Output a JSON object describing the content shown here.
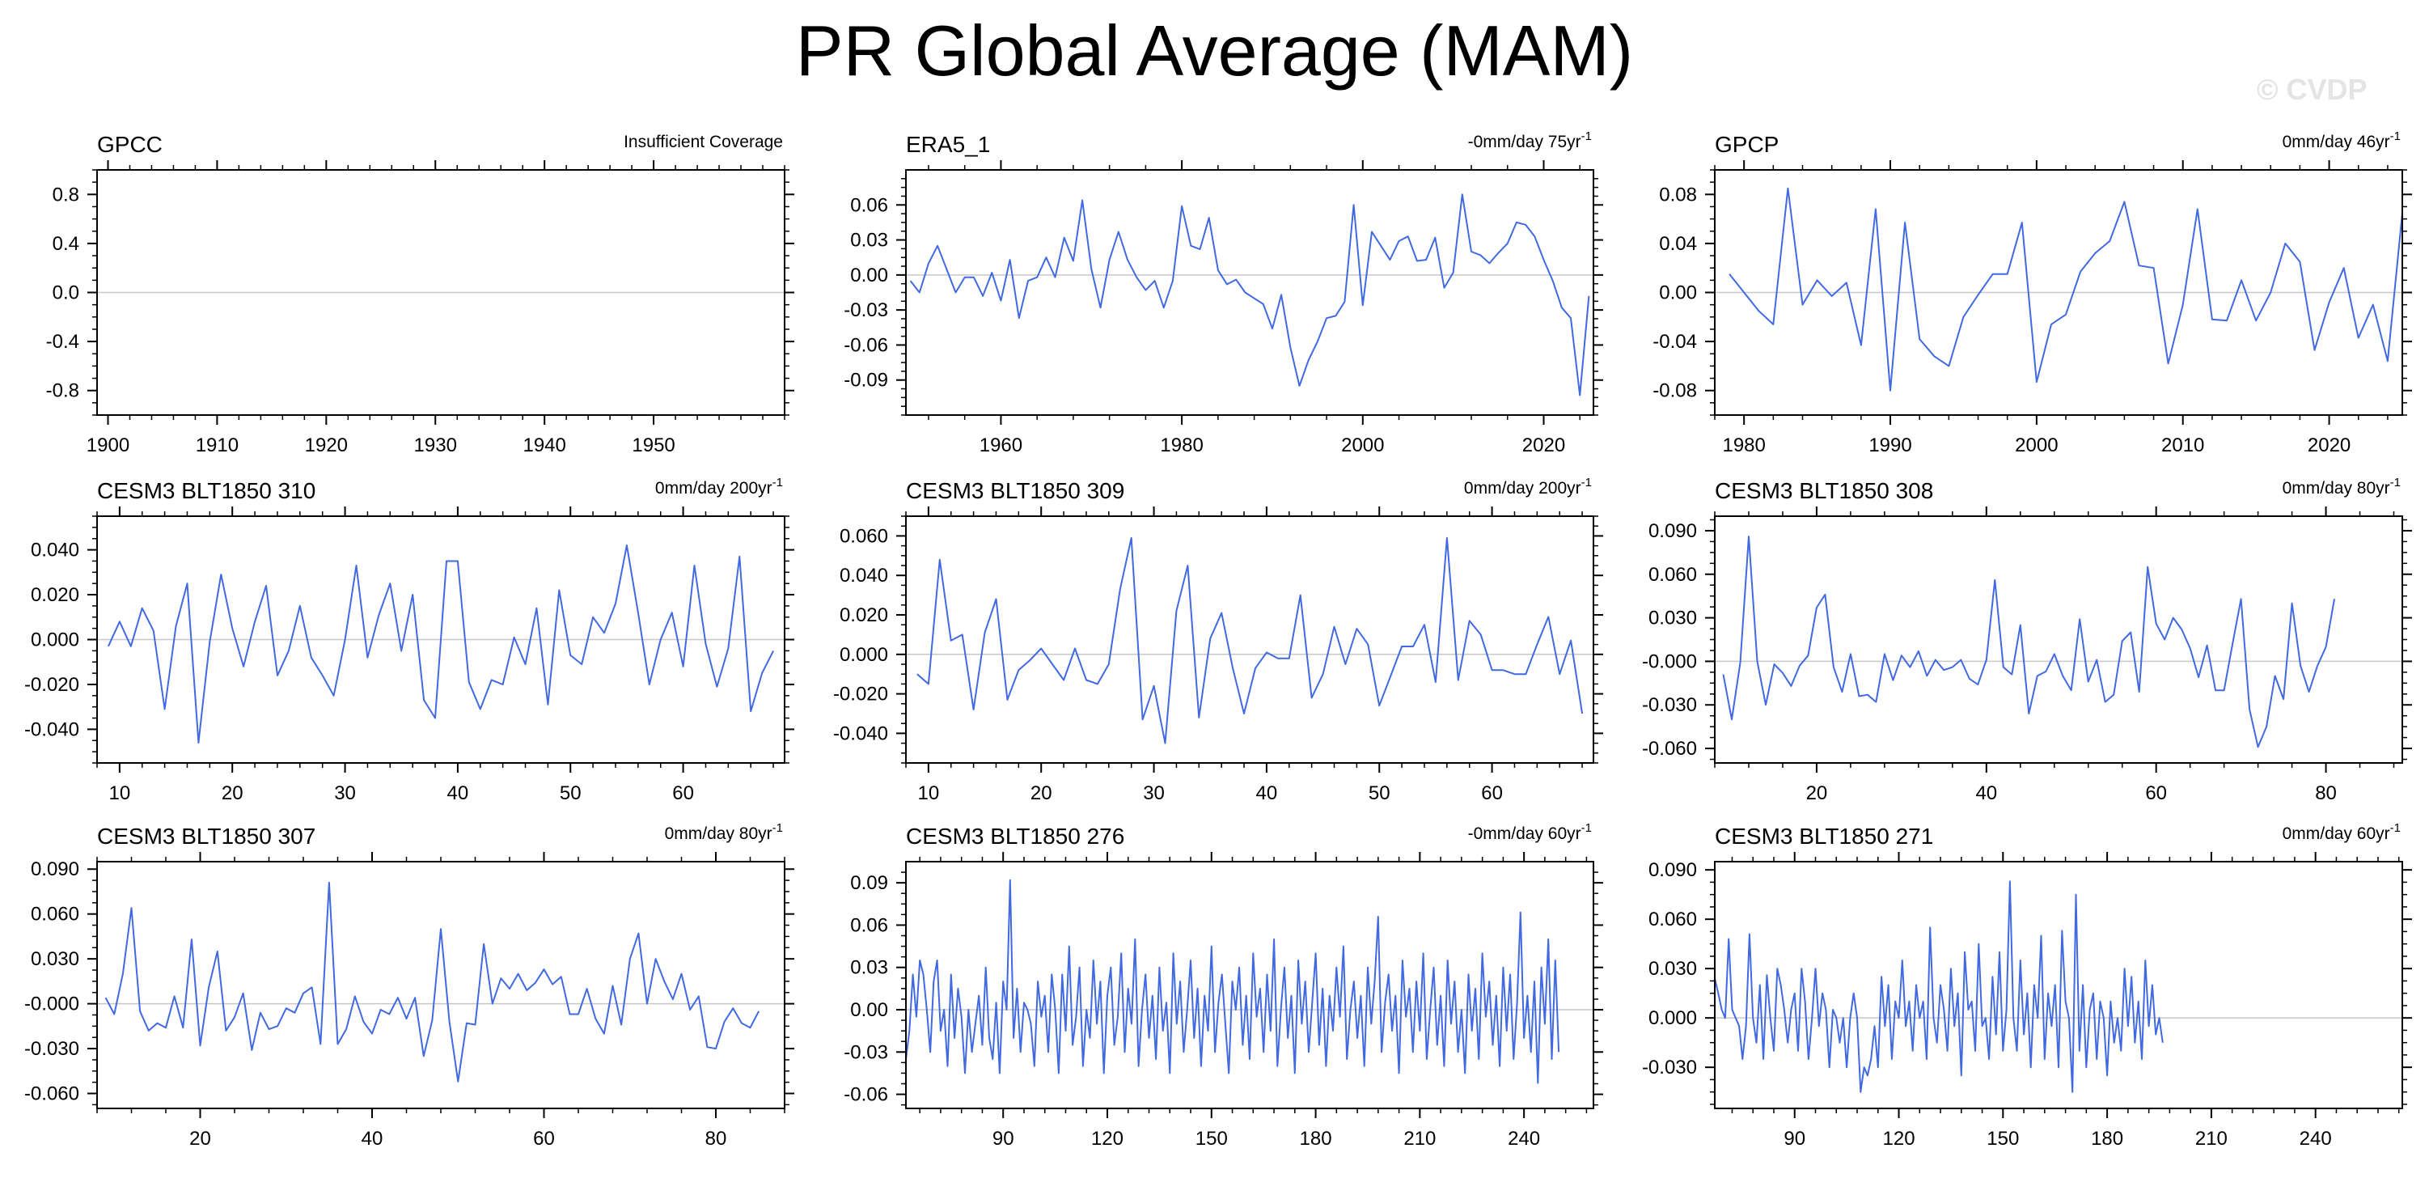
{
  "page": {
    "title": "PR Global Average (MAM)",
    "watermark": "© CVDP"
  },
  "colors": {
    "line": "#4169e1",
    "zero_line": "#c8c8c8",
    "frame": "#000000"
  },
  "chart_data": [
    {
      "type": "line",
      "title": "GPCC",
      "info": "Insufficient Coverage",
      "info_sup": "",
      "x": [],
      "values": [],
      "xlim": [
        1899,
        1962
      ],
      "ylim": [
        -1.0,
        1.0
      ],
      "xticks": [
        1900,
        1910,
        1920,
        1930,
        1940,
        1950
      ],
      "xtick_labels": [
        "1900",
        "1910",
        "1920",
        "1930",
        "1940",
        "1950"
      ],
      "yticks": [
        0.8,
        0.4,
        0.0,
        -0.4,
        -0.8
      ],
      "ytick_labels": [
        "0.8",
        "0.4",
        "0.0",
        "-0.4",
        "-0.8"
      ]
    },
    {
      "type": "line",
      "title": "ERA5_1",
      "info": "-0mm/day 75yr",
      "info_sup": "-1",
      "x_start": 1950,
      "values": [
        -0.005,
        -0.015,
        0.01,
        0.025,
        0.005,
        -0.015,
        -0.002,
        -0.002,
        -0.018,
        0.002,
        -0.022,
        0.013,
        -0.037,
        -0.005,
        -0.002,
        0.015,
        -0.002,
        0.032,
        0.012,
        0.064,
        0.005,
        -0.028,
        0.013,
        0.037,
        0.013,
        -0.002,
        -0.013,
        -0.005,
        -0.028,
        -0.005,
        0.059,
        0.025,
        0.022,
        0.049,
        0.004,
        -0.008,
        -0.004,
        -0.015,
        -0.02,
        -0.025,
        -0.046,
        -0.017,
        -0.062,
        -0.095,
        -0.073,
        -0.057,
        -0.037,
        -0.035,
        -0.023,
        0.06,
        -0.026,
        0.037,
        0.025,
        0.013,
        0.029,
        0.033,
        0.012,
        0.013,
        0.032,
        -0.011,
        0.002,
        0.069,
        0.02,
        0.017,
        0.01,
        0.019,
        0.027,
        0.045,
        0.043,
        0.033,
        0.013,
        -0.005,
        -0.028,
        -0.037,
        -0.103,
        -0.018
      ],
      "xlim": [
        1949.5,
        2025.5
      ],
      "ylim": [
        -0.12,
        0.09
      ],
      "xticks": [
        1960,
        1980,
        2000,
        2020
      ],
      "xtick_labels": [
        "1960",
        "1980",
        "2000",
        "2020"
      ],
      "yticks": [
        0.06,
        0.03,
        0.0,
        -0.03,
        -0.06,
        -0.09
      ],
      "ytick_labels": [
        "0.06",
        "0.03",
        "0.00",
        "-0.03",
        "-0.06",
        "-0.09"
      ]
    },
    {
      "type": "line",
      "title": "GPCP",
      "info": "0mm/day 46yr",
      "info_sup": "-1",
      "x_start": 1979,
      "values": [
        0.015,
        0.0,
        -0.015,
        -0.026,
        0.085,
        -0.01,
        0.01,
        -0.003,
        0.008,
        -0.043,
        0.068,
        -0.08,
        0.057,
        -0.038,
        -0.052,
        -0.06,
        -0.02,
        -0.002,
        0.015,
        0.015,
        0.057,
        -0.073,
        -0.026,
        -0.018,
        0.017,
        0.032,
        0.042,
        0.074,
        0.022,
        0.02,
        -0.058,
        -0.01,
        0.068,
        -0.022,
        -0.023,
        0.01,
        -0.023,
        0.0,
        0.04,
        0.025,
        -0.047,
        -0.008,
        0.02,
        -0.037,
        -0.01,
        -0.056,
        0.065
      ],
      "xlim": [
        1978,
        2025
      ],
      "ylim": [
        -0.1,
        0.1
      ],
      "xticks": [
        1980,
        1990,
        2000,
        2010,
        2020
      ],
      "xtick_labels": [
        "1980",
        "1990",
        "2000",
        "2010",
        "2020"
      ],
      "yticks": [
        0.08,
        0.04,
        0.0,
        -0.04,
        -0.08
      ],
      "ytick_labels": [
        "0.08",
        "0.04",
        "0.00",
        "-0.04",
        "-0.08"
      ]
    },
    {
      "type": "line",
      "title": "CESM3 BLT1850 310",
      "info": "0mm/day 200yr",
      "info_sup": "-1",
      "x_start": 9,
      "values": [
        -0.003,
        0.008,
        -0.003,
        0.014,
        0.004,
        -0.031,
        0.006,
        0.025,
        -0.046,
        -0.001,
        0.029,
        0.005,
        -0.012,
        0.008,
        0.024,
        -0.016,
        -0.005,
        0.015,
        -0.008,
        -0.016,
        -0.025,
        0.0,
        0.033,
        -0.008,
        0.011,
        0.025,
        -0.005,
        0.02,
        -0.027,
        -0.035,
        0.035,
        0.035,
        -0.019,
        -0.031,
        -0.018,
        -0.02,
        0.001,
        -0.011,
        0.014,
        -0.029,
        0.022,
        -0.007,
        -0.011,
        0.01,
        0.003,
        0.016,
        0.042,
        0.012,
        -0.02,
        0.0,
        0.012,
        -0.012,
        0.033,
        -0.002,
        -0.021,
        -0.004,
        0.037,
        -0.032,
        -0.015,
        -0.005
      ],
      "xlim": [
        8,
        69
      ],
      "ylim": [
        -0.055,
        0.055
      ],
      "xticks": [
        10,
        20,
        30,
        40,
        50,
        60
      ],
      "xtick_labels": [
        "10",
        "20",
        "30",
        "40",
        "50",
        "60"
      ],
      "yticks": [
        0.04,
        0.02,
        0.0,
        -0.02,
        -0.04
      ],
      "ytick_labels": [
        "0.040",
        "0.020",
        "0.000",
        "-0.020",
        "-0.040"
      ]
    },
    {
      "type": "line",
      "title": "CESM3 BLT1850 309",
      "info": "0mm/day 200yr",
      "info_sup": "-1",
      "x_start": 9,
      "values": [
        -0.01,
        -0.015,
        0.048,
        0.007,
        0.01,
        -0.028,
        0.011,
        0.028,
        -0.023,
        -0.008,
        -0.003,
        0.003,
        -0.005,
        -0.013,
        0.003,
        -0.013,
        -0.015,
        -0.005,
        0.033,
        0.059,
        -0.033,
        -0.016,
        -0.045,
        0.022,
        0.045,
        -0.032,
        0.008,
        0.021,
        -0.007,
        -0.03,
        -0.007,
        0.001,
        -0.002,
        -0.002,
        0.03,
        -0.022,
        -0.01,
        0.014,
        -0.005,
        0.013,
        0.005,
        -0.026,
        -0.011,
        0.004,
        0.004,
        0.015,
        -0.014,
        0.059,
        -0.013,
        0.017,
        0.01,
        -0.008,
        -0.008,
        -0.01,
        -0.01,
        0.005,
        0.019,
        -0.01,
        0.007,
        -0.03
      ],
      "xlim": [
        8,
        69
      ],
      "ylim": [
        -0.055,
        0.07
      ],
      "xticks": [
        10,
        20,
        30,
        40,
        50,
        60
      ],
      "xtick_labels": [
        "10",
        "20",
        "30",
        "40",
        "50",
        "60"
      ],
      "yticks": [
        0.06,
        0.04,
        0.02,
        0.0,
        -0.02,
        -0.04
      ],
      "ytick_labels": [
        "0.060",
        "0.040",
        "0.020",
        "0.000",
        "-0.020",
        "-0.040"
      ]
    },
    {
      "type": "line",
      "title": "CESM3 BLT1850 308",
      "info": "0mm/day 80yr",
      "info_sup": "-1",
      "x_start": 9,
      "values": [
        -0.009,
        -0.04,
        -0.001,
        0.086,
        0.0,
        -0.03,
        -0.002,
        -0.008,
        -0.017,
        -0.003,
        0.004,
        0.037,
        0.046,
        -0.004,
        -0.021,
        0.005,
        -0.024,
        -0.023,
        -0.028,
        0.005,
        -0.013,
        0.004,
        -0.004,
        0.007,
        -0.01,
        0.001,
        -0.006,
        -0.004,
        0.001,
        -0.012,
        -0.016,
        0.001,
        0.056,
        -0.004,
        -0.009,
        0.025,
        -0.036,
        -0.01,
        -0.007,
        0.005,
        -0.01,
        -0.02,
        0.029,
        -0.014,
        0.001,
        -0.028,
        -0.023,
        0.014,
        0.02,
        -0.021,
        0.065,
        0.026,
        0.015,
        0.03,
        0.022,
        0.009,
        -0.011,
        0.011,
        -0.02,
        -0.02,
        0.012,
        0.043,
        -0.033,
        -0.059,
        -0.045,
        -0.01,
        -0.026,
        0.04,
        -0.003,
        -0.021,
        -0.003,
        0.01,
        0.043
      ],
      "xlim": [
        8,
        89
      ],
      "ylim": [
        -0.07,
        0.1
      ],
      "xticks": [
        20,
        40,
        60,
        80
      ],
      "xtick_labels": [
        "20",
        "40",
        "60",
        "80"
      ],
      "yticks": [
        0.09,
        0.06,
        0.03,
        0.0,
        -0.03,
        -0.06
      ],
      "ytick_labels": [
        "0.090",
        "0.060",
        "0.030",
        "-0.000",
        "-0.030",
        "-0.060"
      ]
    },
    {
      "type": "line",
      "title": "CESM3 BLT1850 307",
      "info": "0mm/day 80yr",
      "info_sup": "-1",
      "x_start": 9,
      "values": [
        0.004,
        -0.007,
        0.02,
        0.064,
        -0.005,
        -0.018,
        -0.013,
        -0.016,
        0.005,
        -0.016,
        0.043,
        -0.028,
        0.011,
        0.035,
        -0.018,
        -0.009,
        0.007,
        -0.031,
        -0.006,
        -0.017,
        -0.015,
        -0.003,
        -0.006,
        0.007,
        0.011,
        -0.027,
        0.081,
        -0.027,
        -0.017,
        0.005,
        -0.012,
        -0.02,
        -0.004,
        -0.007,
        0.004,
        -0.01,
        0.004,
        -0.035,
        -0.011,
        0.05,
        -0.012,
        -0.052,
        -0.013,
        -0.014,
        0.04,
        0.0,
        0.017,
        0.01,
        0.02,
        0.009,
        0.014,
        0.023,
        0.013,
        0.018,
        -0.007,
        -0.007,
        0.01,
        -0.01,
        -0.02,
        0.012,
        -0.014,
        0.03,
        0.047,
        0.0,
        0.03,
        0.015,
        0.003,
        0.02,
        -0.004,
        0.005,
        -0.029,
        -0.03,
        -0.012,
        -0.003,
        -0.013,
        -0.016,
        -0.005
      ],
      "xlim": [
        8,
        88
      ],
      "ylim": [
        -0.07,
        0.095
      ],
      "xticks": [
        20,
        40,
        60,
        80
      ],
      "xtick_labels": [
        "20",
        "40",
        "60",
        "80"
      ],
      "yticks": [
        0.09,
        0.06,
        0.03,
        0.0,
        -0.03,
        -0.06
      ],
      "ytick_labels": [
        "0.090",
        "0.060",
        "0.030",
        "-0.000",
        "-0.030",
        "-0.060"
      ]
    },
    {
      "type": "line",
      "title": "CESM3 BLT1850 276",
      "info": "-0mm/day 60yr",
      "info_sup": "-1",
      "x_start": 62,
      "values": [
        -0.035,
        -0.015,
        0.025,
        -0.005,
        0.035,
        0.025,
        0.0,
        -0.03,
        0.02,
        0.035,
        -0.015,
        0.0,
        -0.04,
        0.025,
        -0.02,
        0.015,
        -0.005,
        -0.045,
        0.0,
        -0.03,
        -0.01,
        0.01,
        -0.025,
        0.03,
        -0.02,
        -0.035,
        0.005,
        -0.045,
        0.02,
        0.0,
        0.092,
        -0.02,
        0.015,
        -0.03,
        0.005,
        0.0,
        -0.01,
        -0.04,
        0.02,
        -0.005,
        0.01,
        -0.03,
        0.025,
        0.0,
        -0.045,
        0.025,
        -0.015,
        0.045,
        -0.025,
        -0.005,
        0.03,
        -0.04,
        0.0,
        -0.02,
        0.035,
        -0.01,
        0.02,
        -0.045,
        0.01,
        0.03,
        -0.025,
        -0.005,
        0.04,
        -0.03,
        0.015,
        -0.01,
        0.05,
        -0.04,
        0.0,
        0.025,
        -0.02,
        0.01,
        -0.035,
        0.03,
        -0.015,
        0.005,
        -0.045,
        0.04,
        -0.01,
        0.02,
        -0.03,
        0.0,
        0.035,
        -0.02,
        0.015,
        -0.04,
        0.01,
        -0.015,
        0.045,
        -0.03,
        0.005,
        0.025,
        -0.01,
        -0.045,
        0.02,
        0.0,
        0.03,
        -0.025,
        0.01,
        -0.035,
        0.04,
        -0.005,
        0.015,
        -0.03,
        0.025,
        -0.015,
        0.05,
        -0.04,
        0.0,
        0.03,
        -0.02,
        0.01,
        -0.045,
        0.035,
        -0.01,
        0.02,
        -0.03,
        0.005,
        0.04,
        -0.025,
        0.015,
        -0.04,
        0.01,
        -0.015,
        0.03,
        -0.005,
        0.045,
        -0.035,
        0.0,
        0.02,
        -0.02,
        0.01,
        -0.04,
        0.03,
        -0.01,
        0.02,
        0.066,
        -0.03,
        0.005,
        0.025,
        -0.015,
        0.01,
        -0.045,
        0.035,
        -0.005,
        0.015,
        -0.03,
        0.02,
        -0.015,
        0.04,
        -0.035,
        0.0,
        0.03,
        -0.025,
        0.01,
        -0.04,
        0.035,
        -0.01,
        0.02,
        -0.03,
        0.0,
        -0.045,
        0.025,
        -0.015,
        0.015,
        -0.035,
        0.04,
        -0.005,
        0.02,
        -0.025,
        0.01,
        -0.04,
        0.03,
        -0.015,
        0.025,
        -0.035,
        0.005,
        0.069,
        -0.02,
        0.01,
        -0.03,
        0.02,
        -0.052,
        0.03,
        -0.01,
        0.05,
        -0.035,
        0.035,
        -0.03
      ],
      "xlim": [
        62,
        260
      ],
      "ylim": [
        -0.07,
        0.105
      ],
      "xticks": [
        90,
        120,
        150,
        180,
        210,
        240
      ],
      "xtick_labels": [
        "90",
        "120",
        "150",
        "180",
        "210",
        "240"
      ],
      "yticks": [
        0.09,
        0.06,
        0.03,
        0.0,
        -0.03,
        -0.06
      ],
      "ytick_labels": [
        "0.09",
        "0.06",
        "0.03",
        "0.00",
        "-0.03",
        "-0.06"
      ]
    },
    {
      "type": "line",
      "title": "CESM3 BLT1850 271",
      "info": "0mm/day 60yr",
      "info_sup": "-1",
      "x_start": 67,
      "values": [
        0.024,
        0.015,
        0.005,
        0.0,
        0.048,
        0.005,
        0.0,
        -0.005,
        -0.025,
        -0.005,
        0.051,
        0.0,
        -0.015,
        0.02,
        -0.025,
        0.026,
        0.0,
        -0.02,
        0.03,
        0.02,
        0.005,
        -0.015,
        0.005,
        0.015,
        -0.02,
        0.03,
        0.01,
        -0.025,
        0.0,
        0.03,
        -0.005,
        0.015,
        0.005,
        -0.03,
        0.005,
        0.0,
        -0.015,
        0.0,
        -0.03,
        0.0,
        0.015,
        0.0,
        -0.045,
        -0.03,
        -0.035,
        -0.025,
        -0.005,
        -0.03,
        0.025,
        -0.005,
        0.02,
        -0.025,
        0.01,
        0.0,
        0.035,
        -0.005,
        0.01,
        -0.02,
        0.02,
        0.0,
        0.01,
        -0.025,
        0.055,
        0.0,
        -0.015,
        0.02,
        0.005,
        -0.02,
        0.03,
        -0.005,
        0.015,
        -0.035,
        0.04,
        0.005,
        0.01,
        -0.02,
        0.045,
        -0.005,
        0.0,
        -0.025,
        0.025,
        -0.01,
        0.04,
        -0.02,
        0.005,
        0.083,
        0.0,
        -0.02,
        0.035,
        -0.01,
        0.015,
        -0.03,
        0.02,
        0.0,
        0.05,
        -0.025,
        0.015,
        -0.005,
        0.02,
        -0.03,
        0.053,
        0.01,
        0.0,
        -0.045,
        0.075,
        -0.02,
        0.02,
        -0.03,
        0.005,
        0.015,
        -0.025,
        0.01,
        0.0,
        -0.035,
        0.01,
        -0.015,
        0.0,
        -0.02,
        0.03,
        -0.005,
        0.025,
        -0.015,
        0.01,
        -0.025,
        0.035,
        -0.005,
        0.02,
        -0.01,
        0.0,
        -0.015
      ],
      "xlim": [
        67,
        265
      ],
      "ylim": [
        -0.055,
        0.095
      ],
      "xticks": [
        90,
        120,
        150,
        180,
        210,
        240
      ],
      "xtick_labels": [
        "90",
        "120",
        "150",
        "180",
        "210",
        "240"
      ],
      "yticks": [
        0.09,
        0.06,
        0.03,
        0.0,
        -0.03
      ],
      "ytick_labels": [
        "0.090",
        "0.060",
        "0.030",
        "0.000",
        "-0.030"
      ]
    }
  ]
}
